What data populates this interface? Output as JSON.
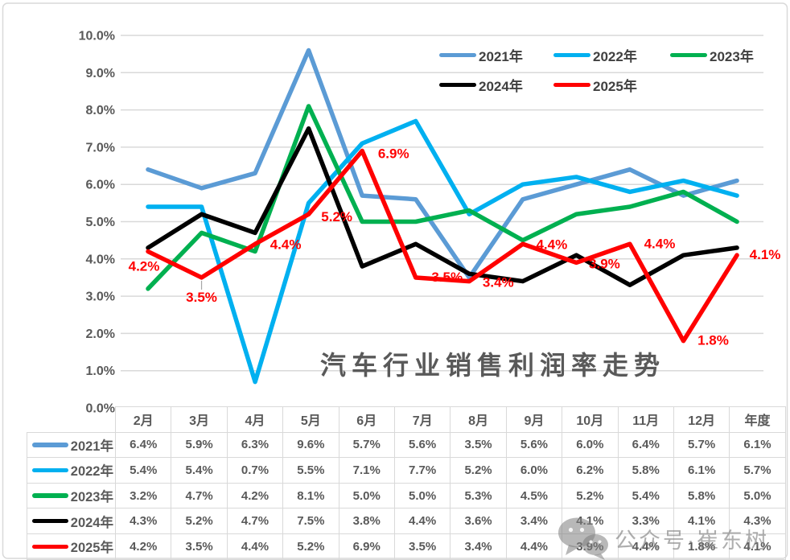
{
  "chart_data": {
    "type": "line",
    "title": "汽车行业销售利润率走势",
    "categories": [
      "2月",
      "3月",
      "4月",
      "5月",
      "6月",
      "7月",
      "8月",
      "9月",
      "10月",
      "11月",
      "12月",
      "年度"
    ],
    "series": [
      {
        "name": "2021年",
        "color": "#5B9BD5",
        "values": [
          6.4,
          5.9,
          6.3,
          9.6,
          5.7,
          5.6,
          3.5,
          5.6,
          6.0,
          6.4,
          5.7,
          6.1
        ]
      },
      {
        "name": "2022年",
        "color": "#00B0F0",
        "values": [
          5.4,
          5.4,
          0.7,
          5.5,
          7.1,
          7.7,
          5.2,
          6.0,
          6.2,
          5.8,
          6.1,
          5.7
        ]
      },
      {
        "name": "2023年",
        "color": "#00B050",
        "values": [
          3.2,
          4.7,
          4.2,
          8.1,
          5.0,
          5.0,
          5.3,
          4.5,
          5.2,
          5.4,
          5.8,
          5.0
        ]
      },
      {
        "name": "2024年",
        "color": "#000000",
        "values": [
          4.3,
          5.2,
          4.7,
          7.5,
          3.8,
          4.4,
          3.6,
          3.4,
          4.1,
          3.3,
          4.1,
          4.3
        ]
      },
      {
        "name": "2025年",
        "color": "#FF0000",
        "values": [
          4.2,
          3.5,
          4.4,
          5.2,
          6.9,
          3.5,
          3.4,
          4.4,
          3.9,
          4.4,
          1.8,
          4.1
        ],
        "data_labels": true,
        "label_color": "#FF0000"
      }
    ],
    "ylim": [
      0,
      10
    ],
    "y_tick_labels": [
      "10.0%",
      "9.0%",
      "8.0%",
      "7.0%",
      "6.0%",
      "5.0%",
      "4.0%",
      "3.0%",
      "2.0%",
      "1.0%",
      "0.0%"
    ],
    "value_format": "one-decimal-percent",
    "grid": true,
    "legend_position": "top-right",
    "legend_rows": [
      [
        "2021年",
        "2022年",
        "2023年"
      ],
      [
        "2024年",
        "2025年"
      ]
    ]
  },
  "table": {
    "header_row": [
      "2月",
      "3月",
      "4月",
      "5月",
      "6月",
      "7月",
      "8月",
      "9月",
      "10月",
      "11月",
      "12月",
      "年度"
    ],
    "row_labels": [
      "2021年",
      "2022年",
      "2023年",
      "2024年",
      "2025年"
    ],
    "shows_legend_keys": true
  },
  "watermark": {
    "text": "公众号·崔东树",
    "icon": "wechat-icon",
    "color": "#7d7d7d"
  },
  "colors": {
    "grid": "#D9D9D9",
    "axis_text": "#595959",
    "table_border": "#D9D9D9",
    "table_text": "#595959",
    "title_text": "#595959",
    "legend_text": "#404040",
    "frame_border": "#D9D9D9",
    "leader_line": "#A6A6A6"
  }
}
